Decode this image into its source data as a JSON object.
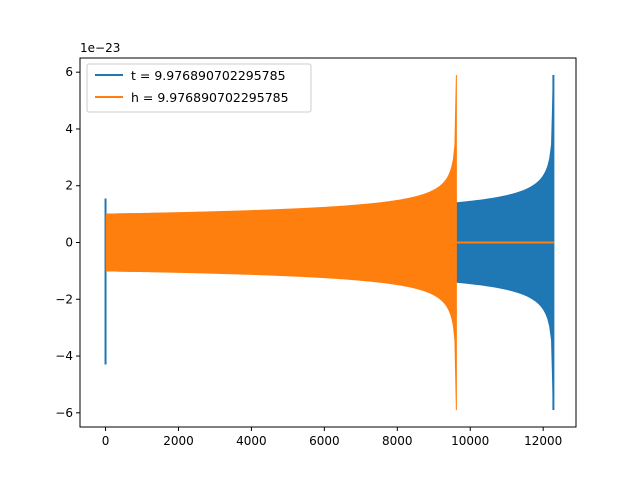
{
  "chart_data": {
    "type": "line",
    "title": "",
    "xlabel": "",
    "ylabel": "",
    "y_offset_label": "1e−23",
    "xlim": [
      -700,
      12900
    ],
    "ylim": [
      -6.5,
      6.5
    ],
    "x_ticks": [
      0,
      2000,
      4000,
      6000,
      8000,
      10000,
      12000
    ],
    "x_tick_labels": [
      "0",
      "2000",
      "4000",
      "6000",
      "8000",
      "10000",
      "12000"
    ],
    "y_ticks": [
      -6,
      -4,
      -2,
      0,
      2,
      4,
      6
    ],
    "y_tick_labels": [
      "−6",
      "−4",
      "−2",
      "0",
      "2",
      "4",
      "6"
    ],
    "grid": false,
    "legend_position": "top-left",
    "series": [
      {
        "name": "t = 9.976890702295785",
        "color": "#1f77b4",
        "start_spike": {
          "x": 0,
          "max": 1.55,
          "min": -4.3
        },
        "oscillation": {
          "x_start": 20,
          "x_end": 12280,
          "amplitude_start": 1.0,
          "amplitude_end": 5.9
        },
        "end_spike": {
          "x": 12280,
          "max": 5.9,
          "min": -5.9
        }
      },
      {
        "name": "h = 9.976890702295785",
        "color": "#ff7f0e",
        "oscillation": {
          "x_start": 20,
          "x_end": 9620,
          "amplitude_start": 1.0,
          "amplitude_end": 5.9
        },
        "flat_segment": {
          "x_start": 9620,
          "x_end": 12300,
          "value": 0
        }
      }
    ]
  }
}
